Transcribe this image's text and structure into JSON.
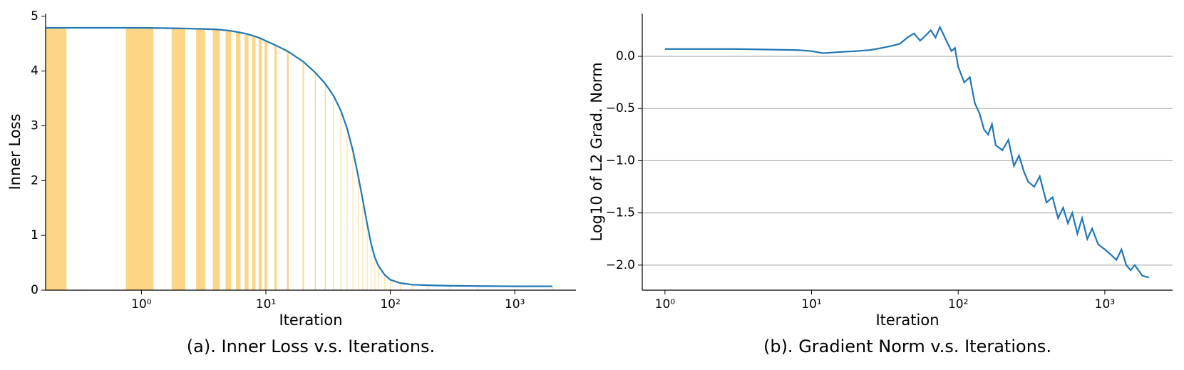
{
  "chart_data": [
    {
      "type": "bar_line",
      "caption": "(a). Inner Loss v.s. Iterations.",
      "xlabel": "Iteration",
      "ylabel": "Inner Loss",
      "log_x": true,
      "grid": false,
      "bar_color": "#fdd587",
      "line_color": "#1f77b4",
      "x": [
        0,
        1,
        2,
        3,
        4,
        5,
        6,
        7,
        8,
        9,
        10,
        12,
        15,
        20,
        25,
        30,
        35,
        40,
        45,
        50,
        55,
        60,
        65,
        70,
        75,
        80,
        90,
        100,
        120,
        150,
        200,
        300,
        500,
        1000,
        2000
      ],
      "values": [
        4.79,
        4.79,
        4.78,
        4.77,
        4.76,
        4.74,
        4.71,
        4.68,
        4.64,
        4.6,
        4.55,
        4.47,
        4.36,
        4.17,
        3.97,
        3.77,
        3.55,
        3.28,
        2.95,
        2.55,
        2.1,
        1.65,
        1.22,
        0.85,
        0.6,
        0.45,
        0.28,
        0.19,
        0.13,
        0.1,
        0.09,
        0.08,
        0.075,
        0.07,
        0.07
      ],
      "xlim": [
        0.17,
        3100
      ],
      "ylim": [
        0,
        5.05
      ],
      "xticks": [
        {
          "value": 1,
          "label": "10⁰"
        },
        {
          "value": 10,
          "label": "10¹"
        },
        {
          "value": 100,
          "label": "10²"
        },
        {
          "value": 1000,
          "label": "10³"
        }
      ],
      "yticks": [
        0,
        1,
        2,
        3,
        4,
        5
      ]
    },
    {
      "type": "line",
      "caption": "(b). Gradient Norm v.s. Iterations.",
      "xlabel": "Iteration",
      "ylabel": "Log10 of L2 Grad. Norm",
      "log_x": true,
      "grid": true,
      "line_color": "#1f77b4",
      "x": [
        1,
        2,
        3,
        5,
        8,
        10,
        12,
        15,
        20,
        25,
        30,
        35,
        40,
        45,
        50,
        55,
        60,
        65,
        70,
        75,
        80,
        85,
        90,
        95,
        100,
        110,
        120,
        130,
        140,
        150,
        160,
        170,
        180,
        200,
        220,
        240,
        260,
        280,
        300,
        330,
        360,
        400,
        440,
        480,
        520,
        560,
        600,
        650,
        700,
        760,
        820,
        900,
        1000,
        1100,
        1200,
        1300,
        1400,
        1500,
        1600,
        1800,
        2000
      ],
      "values": [
        0.07,
        0.07,
        0.07,
        0.065,
        0.06,
        0.05,
        0.03,
        0.04,
        0.05,
        0.06,
        0.08,
        0.1,
        0.12,
        0.18,
        0.22,
        0.15,
        0.2,
        0.25,
        0.18,
        0.28,
        0.2,
        0.12,
        0.05,
        0.08,
        -0.1,
        -0.25,
        -0.2,
        -0.45,
        -0.55,
        -0.7,
        -0.75,
        -0.65,
        -0.85,
        -0.9,
        -0.8,
        -1.05,
        -0.95,
        -1.1,
        -1.2,
        -1.25,
        -1.15,
        -1.4,
        -1.35,
        -1.55,
        -1.45,
        -1.6,
        -1.5,
        -1.7,
        -1.55,
        -1.75,
        -1.65,
        -1.8,
        -1.85,
        -1.9,
        -1.95,
        -1.85,
        -2.0,
        -2.05,
        -2.0,
        -2.1,
        -2.12
      ],
      "xlim": [
        0.7,
        2900
      ],
      "ylim": [
        -2.24,
        0.41
      ],
      "xticks": [
        {
          "value": 1,
          "label": "10⁰"
        },
        {
          "value": 10,
          "label": "10¹"
        },
        {
          "value": 100,
          "label": "10²"
        },
        {
          "value": 1000,
          "label": "10³"
        }
      ],
      "yticks": [
        {
          "value": 0,
          "label": "0.0"
        },
        {
          "value": -0.5,
          "label": "−0.5"
        },
        {
          "value": -1,
          "label": "−1.0"
        },
        {
          "value": -1.5,
          "label": "−1.5"
        },
        {
          "value": -2,
          "label": "−2.0"
        }
      ]
    }
  ]
}
